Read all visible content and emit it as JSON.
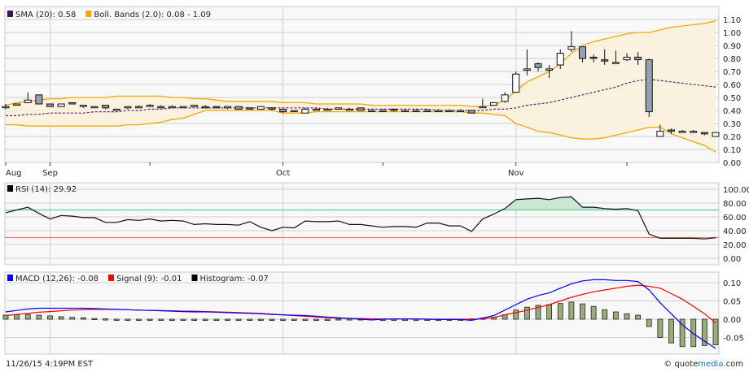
{
  "chart_data": [
    {
      "type": "candlestick",
      "legend": [
        {
          "label": "SMA (20): 0.58",
          "color": "#3c1361"
        },
        {
          "label": "Boll. Bands (2.0): 0.08 - 1.09",
          "color": "#f5a800"
        }
      ],
      "ylim": [
        0,
        1.1
      ],
      "yticks": [
        "0.00",
        "0.10",
        "0.20",
        "0.30",
        "0.40",
        "0.50",
        "0.60",
        "0.70",
        "0.80",
        "0.90",
        "1.00",
        "1.10"
      ],
      "xticks": [
        {
          "index": 0,
          "label": "Aug"
        },
        {
          "index": 4,
          "label": "Sep"
        },
        {
          "index": 13,
          "label": ""
        },
        {
          "index": 25,
          "label": "Oct"
        },
        {
          "index": 34,
          "label": ""
        },
        {
          "index": 46,
          "label": "Nov"
        },
        {
          "index": 56,
          "label": ""
        }
      ],
      "grid": true,
      "ohlc": [
        [
          0.43,
          0.45,
          0.41,
          0.43
        ],
        [
          0.44,
          0.45,
          0.44,
          0.45
        ],
        [
          0.46,
          0.54,
          0.46,
          0.48
        ],
        [
          0.52,
          0.52,
          0.45,
          0.45
        ],
        [
          0.45,
          0.45,
          0.43,
          0.43
        ],
        [
          0.43,
          0.45,
          0.43,
          0.45
        ],
        [
          0.46,
          0.46,
          0.45,
          0.45
        ],
        [
          0.44,
          0.44,
          0.42,
          0.44
        ],
        [
          0.43,
          0.43,
          0.43,
          0.43
        ],
        [
          0.44,
          0.44,
          0.41,
          0.42
        ],
        [
          0.41,
          0.41,
          0.41,
          0.41
        ],
        [
          0.42,
          0.43,
          0.41,
          0.43
        ],
        [
          0.43,
          0.44,
          0.42,
          0.43
        ],
        [
          0.44,
          0.45,
          0.43,
          0.44
        ],
        [
          0.43,
          0.44,
          0.43,
          0.43
        ],
        [
          0.43,
          0.44,
          0.43,
          0.43
        ],
        [
          0.43,
          0.43,
          0.43,
          0.43
        ],
        [
          0.43,
          0.44,
          0.43,
          0.44
        ],
        [
          0.43,
          0.44,
          0.42,
          0.42
        ],
        [
          0.43,
          0.43,
          0.42,
          0.42
        ],
        [
          0.42,
          0.43,
          0.41,
          0.43
        ],
        [
          0.43,
          0.43,
          0.41,
          0.41
        ],
        [
          0.42,
          0.42,
          0.41,
          0.41
        ],
        [
          0.41,
          0.43,
          0.41,
          0.43
        ],
        [
          0.42,
          0.42,
          0.4,
          0.41
        ],
        [
          0.41,
          0.41,
          0.38,
          0.39
        ],
        [
          0.4,
          0.4,
          0.39,
          0.4
        ],
        [
          0.38,
          0.42,
          0.38,
          0.41
        ],
        [
          0.41,
          0.42,
          0.4,
          0.41
        ],
        [
          0.41,
          0.42,
          0.41,
          0.41
        ],
        [
          0.41,
          0.42,
          0.41,
          0.42
        ],
        [
          0.41,
          0.42,
          0.41,
          0.41
        ],
        [
          0.42,
          0.42,
          0.4,
          0.4
        ],
        [
          0.4,
          0.41,
          0.4,
          0.4
        ],
        [
          0.4,
          0.41,
          0.39,
          0.4
        ],
        [
          0.41,
          0.41,
          0.39,
          0.4
        ],
        [
          0.4,
          0.41,
          0.4,
          0.4
        ],
        [
          0.4,
          0.41,
          0.39,
          0.4
        ],
        [
          0.4,
          0.41,
          0.4,
          0.4
        ],
        [
          0.4,
          0.41,
          0.4,
          0.4
        ],
        [
          0.4,
          0.41,
          0.4,
          0.4
        ],
        [
          0.4,
          0.41,
          0.4,
          0.4
        ],
        [
          0.4,
          0.4,
          0.38,
          0.38
        ],
        [
          0.43,
          0.49,
          0.43,
          0.43
        ],
        [
          0.44,
          0.46,
          0.44,
          0.46
        ],
        [
          0.47,
          0.54,
          0.46,
          0.52
        ],
        [
          0.54,
          0.7,
          0.54,
          0.68
        ],
        [
          0.71,
          0.87,
          0.67,
          0.72
        ],
        [
          0.76,
          0.77,
          0.7,
          0.73
        ],
        [
          0.71,
          0.75,
          0.65,
          0.72
        ],
        [
          0.75,
          0.87,
          0.72,
          0.84
        ],
        [
          0.87,
          1.01,
          0.85,
          0.89
        ],
        [
          0.89,
          0.89,
          0.77,
          0.8
        ],
        [
          0.81,
          0.83,
          0.77,
          0.8
        ],
        [
          0.79,
          0.87,
          0.75,
          0.78
        ],
        [
          0.77,
          0.86,
          0.76,
          0.77
        ],
        [
          0.79,
          0.84,
          0.78,
          0.81
        ],
        [
          0.81,
          0.85,
          0.75,
          0.79
        ],
        [
          0.79,
          0.8,
          0.35,
          0.39
        ],
        [
          0.2,
          0.29,
          0.2,
          0.24
        ],
        [
          0.25,
          0.26,
          0.22,
          0.24
        ],
        [
          0.24,
          0.25,
          0.23,
          0.24
        ],
        [
          0.24,
          0.25,
          0.23,
          0.24
        ],
        [
          0.23,
          0.23,
          0.21,
          0.22
        ],
        [
          0.2,
          0.23,
          0.2,
          0.23
        ]
      ],
      "sma": [
        0.36,
        0.36,
        0.37,
        0.37,
        0.38,
        0.38,
        0.38,
        0.38,
        0.39,
        0.39,
        0.39,
        0.4,
        0.4,
        0.41,
        0.41,
        0.42,
        0.42,
        0.42,
        0.42,
        0.42,
        0.42,
        0.42,
        0.42,
        0.42,
        0.42,
        0.42,
        0.42,
        0.42,
        0.42,
        0.41,
        0.41,
        0.41,
        0.41,
        0.41,
        0.41,
        0.41,
        0.41,
        0.41,
        0.41,
        0.4,
        0.4,
        0.4,
        0.4,
        0.4,
        0.41,
        0.41,
        0.42,
        0.44,
        0.45,
        0.46,
        0.48,
        0.5,
        0.52,
        0.54,
        0.56,
        0.58,
        0.61,
        0.63,
        0.64,
        0.63,
        0.62,
        0.61,
        0.6,
        0.59,
        0.58
      ],
      "boll_upper": [
        0.44,
        0.46,
        0.47,
        0.48,
        0.49,
        0.49,
        0.5,
        0.5,
        0.5,
        0.5,
        0.51,
        0.51,
        0.51,
        0.51,
        0.51,
        0.5,
        0.5,
        0.49,
        0.49,
        0.48,
        0.47,
        0.47,
        0.47,
        0.47,
        0.47,
        0.46,
        0.46,
        0.46,
        0.45,
        0.45,
        0.45,
        0.45,
        0.45,
        0.44,
        0.44,
        0.44,
        0.44,
        0.44,
        0.44,
        0.44,
        0.44,
        0.44,
        0.43,
        0.43,
        0.44,
        0.48,
        0.55,
        0.62,
        0.66,
        0.7,
        0.76,
        0.84,
        0.9,
        0.93,
        0.95,
        0.97,
        0.99,
        1.0,
        1.0,
        1.02,
        1.04,
        1.05,
        1.06,
        1.07,
        1.09
      ],
      "boll_lower": [
        0.29,
        0.29,
        0.28,
        0.28,
        0.28,
        0.28,
        0.28,
        0.28,
        0.28,
        0.28,
        0.28,
        0.29,
        0.29,
        0.3,
        0.31,
        0.33,
        0.34,
        0.37,
        0.4,
        0.4,
        0.4,
        0.4,
        0.4,
        0.4,
        0.4,
        0.38,
        0.38,
        0.38,
        0.39,
        0.39,
        0.39,
        0.39,
        0.39,
        0.39,
        0.39,
        0.39,
        0.39,
        0.39,
        0.39,
        0.39,
        0.39,
        0.39,
        0.38,
        0.38,
        0.37,
        0.36,
        0.3,
        0.27,
        0.24,
        0.23,
        0.21,
        0.19,
        0.18,
        0.18,
        0.19,
        0.21,
        0.23,
        0.25,
        0.27,
        0.27,
        0.22,
        0.19,
        0.16,
        0.13,
        0.08
      ]
    },
    {
      "type": "line",
      "legend": [
        {
          "label": "RSI (14): 29.92",
          "color": "#000000"
        }
      ],
      "ylim": [
        0,
        100
      ],
      "yticks": [
        "0.00",
        "20.00",
        "40.00",
        "60.00",
        "80.00",
        "100.00"
      ],
      "overbought": 70,
      "oversold": 30,
      "overbought_color": "#66cc99",
      "oversold_color": "#ee7777",
      "values": [
        66,
        70,
        74,
        65,
        57,
        62,
        61,
        59,
        59,
        52,
        52,
        56,
        55,
        57,
        54,
        55,
        54,
        49,
        50,
        49,
        49,
        48,
        53,
        45,
        40,
        45,
        44,
        54,
        53,
        53,
        54,
        49,
        49,
        47,
        45,
        46,
        46,
        45,
        51,
        51,
        47,
        47,
        39,
        57,
        64,
        72,
        85,
        86,
        87,
        85,
        88,
        89,
        74,
        74,
        72,
        71,
        72,
        69,
        35,
        29,
        29,
        29,
        29,
        28,
        29.92
      ]
    },
    {
      "type": "bar+line",
      "legend": [
        {
          "label": "MACD (12,26): -0.08",
          "color": "#0000ff"
        },
        {
          "label": "Signal (9): -0.01",
          "color": "#ff0000"
        },
        {
          "label": "Histogram: -0.07",
          "color": "#000000"
        }
      ],
      "ylim": [
        -0.1,
        0.13
      ],
      "yticks": [
        {
          "v": 0.1,
          "label": "0.10"
        },
        {
          "v": 0.05,
          "label": "0.05"
        },
        {
          "v": 0,
          "label": "0.00"
        },
        {
          "v": -0.05,
          "label": "-0.05"
        }
      ],
      "macd": [
        0.02,
        0.024,
        0.028,
        0.03,
        0.03,
        0.03,
        0.03,
        0.03,
        0.029,
        0.028,
        0.027,
        0.026,
        0.025,
        0.024,
        0.023,
        0.022,
        0.021,
        0.02,
        0.02,
        0.019,
        0.018,
        0.017,
        0.016,
        0.015,
        0.013,
        0.012,
        0.011,
        0.01,
        0.008,
        0.006,
        0.004,
        0.002,
        0.0,
        -0.002,
        0.0,
        0.001,
        0.001,
        0.001,
        0.0,
        -0.001,
        -0.001,
        -0.001,
        -0.003,
        0.003,
        0.01,
        0.025,
        0.04,
        0.055,
        0.065,
        0.072,
        0.085,
        0.097,
        0.105,
        0.108,
        0.108,
        0.106,
        0.106,
        0.103,
        0.08,
        0.045,
        0.015,
        -0.015,
        -0.04,
        -0.06,
        -0.08
      ],
      "signal": [
        0.01,
        0.013,
        0.016,
        0.019,
        0.021,
        0.023,
        0.025,
        0.026,
        0.027,
        0.027,
        0.027,
        0.026,
        0.025,
        0.024,
        0.024,
        0.023,
        0.022,
        0.022,
        0.021,
        0.02,
        0.019,
        0.018,
        0.017,
        0.016,
        0.014,
        0.012,
        0.01,
        0.008,
        0.006,
        0.004,
        0.003,
        0.002,
        0.002,
        0.001,
        0.001,
        0.001,
        0.001,
        0.001,
        0.0,
        0.0,
        0.0,
        0.0,
        0.0,
        0.001,
        0.005,
        0.012,
        0.018,
        0.025,
        0.032,
        0.04,
        0.05,
        0.06,
        0.068,
        0.075,
        0.08,
        0.085,
        0.09,
        0.093,
        0.09,
        0.085,
        0.07,
        0.055,
        0.035,
        0.015,
        -0.01
      ],
      "histogram": [
        0.011,
        0.012,
        0.013,
        0.011,
        0.009,
        0.007,
        0.005,
        0.004,
        0.002,
        0.001,
        0.0,
        -0.001,
        -0.001,
        -0.001,
        -0.001,
        -0.001,
        -0.001,
        -0.002,
        -0.002,
        -0.002,
        -0.002,
        -0.002,
        -0.002,
        -0.002,
        -0.003,
        -0.003,
        -0.003,
        -0.001,
        -0.001,
        0.0,
        0.001,
        0.001,
        0.001,
        0.001,
        0.0,
        0.0,
        0.0,
        0.0,
        0.0,
        0.0,
        0.0,
        0.0,
        0.001,
        0.003,
        0.005,
        0.012,
        0.025,
        0.033,
        0.038,
        0.04,
        0.043,
        0.047,
        0.042,
        0.035,
        0.026,
        0.02,
        0.015,
        0.011,
        -0.02,
        -0.05,
        -0.065,
        -0.075,
        -0.075,
        -0.072,
        -0.07
      ],
      "histogram_color": "#98ad7a"
    }
  ],
  "footer": {
    "timestamp": "11/26/15 4:19PM EST",
    "brand_prefix": "© quote",
    "brand_accent": "media",
    "brand_suffix": ".com",
    "brand_accent_color": "#1a6fc9"
  }
}
